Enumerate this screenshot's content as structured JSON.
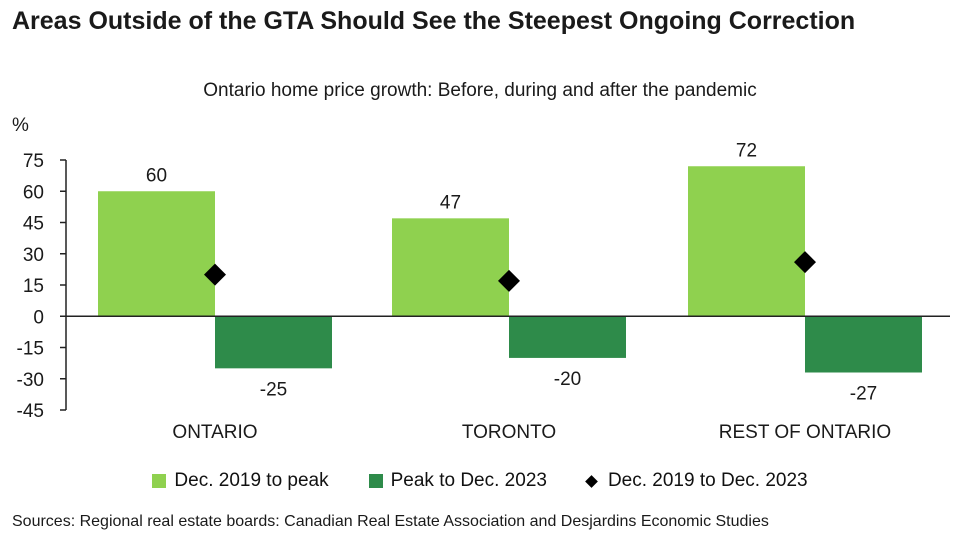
{
  "chart_data": {
    "type": "bar",
    "title": "Areas Outside of the GTA Should See the Steepest Ongoing Correction",
    "subtitle": "Ontario home price growth: Before, during and after the pandemic",
    "ylabel": "%",
    "ylim": [
      -45,
      75
    ],
    "yticks": [
      75,
      60,
      45,
      30,
      15,
      0,
      -15,
      -30,
      -45
    ],
    "categories": [
      "ONTARIO",
      "TORONTO",
      "REST OF ONTARIO"
    ],
    "series": [
      {
        "name": "Dec. 2019 to peak",
        "kind": "bar",
        "color": "#8fd14f",
        "values": [
          60,
          47,
          72
        ],
        "labels": [
          "60",
          "47",
          "72"
        ]
      },
      {
        "name": "Peak to Dec. 2023",
        "kind": "bar",
        "color": "#2e8b4a",
        "values": [
          -25,
          -20,
          -27
        ],
        "labels": [
          "-25",
          "-20",
          "-27"
        ]
      },
      {
        "name": "Dec. 2019 to Dec. 2023",
        "kind": "marker",
        "color": "#000000",
        "values": [
          20,
          17,
          26
        ]
      }
    ],
    "source": "Sources: Regional real estate boards: Canadian Real Estate Association and Desjardins Economic Studies"
  }
}
